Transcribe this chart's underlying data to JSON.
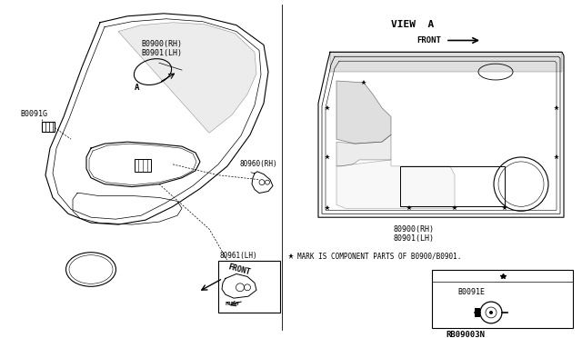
{
  "bg_color": "#ffffff",
  "line_color": "#000000",
  "fig_width": 6.4,
  "fig_height": 3.72,
  "labels": {
    "B0900_RH_1": "B0900(RH)",
    "B0901_LH_1": "B0901(LH)",
    "B0091G": "B0091G",
    "A_label": "A",
    "B0960_RH": "80960(RH)",
    "B0961_LH": "80961(LH)",
    "FRONT_main": "FRONT",
    "VIEW_A": "VIEW  A",
    "FRONT_viewA": "FRONT",
    "B0900_RH_2": "80900(RH)",
    "B0901_LH_2": "80901(LH)",
    "star_note": " MARK IS COMPONENT PARTS OF B0900/B0901.",
    "B0091E": "B0091E",
    "ref_num": "RB09003N"
  }
}
